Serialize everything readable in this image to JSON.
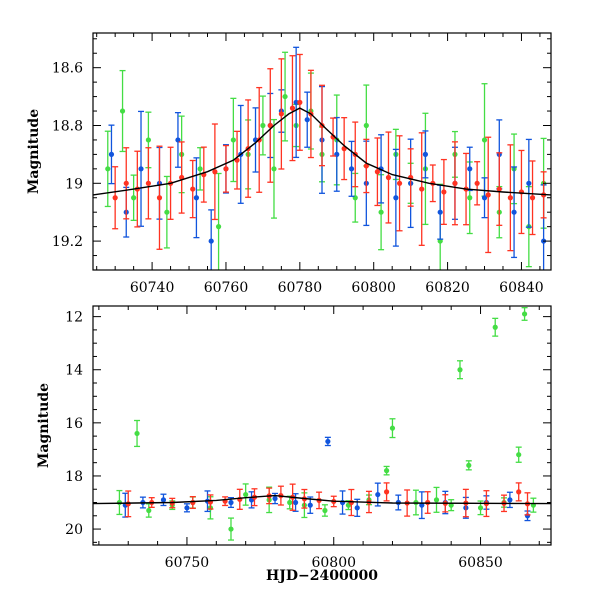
{
  "colors": {
    "green": "#44dd44",
    "blue": "#1155dd",
    "red": "#ff3322",
    "model": "#000000"
  },
  "chart_data": [
    {
      "type": "scatter",
      "xlabel": "",
      "ylabel": "Magnitude",
      "xlim": [
        60724,
        60848
      ],
      "ylim": [
        19.3,
        18.48
      ],
      "inverted_y": true,
      "xticks": [
        "60740",
        "60760",
        "60780",
        "60800",
        "60820",
        "60840"
      ],
      "yticks": [
        "18.6",
        "18.8",
        "19",
        "19.2"
      ],
      "grid": false,
      "model_curve": {
        "x": [
          60724,
          60735,
          60745,
          60755,
          60762,
          60768,
          60773,
          60777,
          60780,
          60783,
          60787,
          60792,
          60798,
          60805,
          60815,
          60825,
          60835,
          60848
        ],
        "y": [
          19.04,
          19.02,
          19.0,
          18.96,
          18.92,
          18.86,
          18.8,
          18.76,
          18.74,
          18.76,
          18.81,
          18.87,
          18.93,
          18.97,
          19.0,
          19.02,
          19.03,
          19.04
        ]
      },
      "series": [
        {
          "name": "",
          "color": "green",
          "points": [
            [
              60728,
              18.95
            ],
            [
              60732,
              18.75
            ],
            [
              60735,
              19.05
            ],
            [
              60739,
              18.85
            ],
            [
              60744,
              19.1
            ],
            [
              60748,
              18.9
            ],
            [
              60753,
              18.95
            ],
            [
              60758,
              19.15
            ],
            [
              60762,
              18.85
            ],
            [
              60766,
              18.9
            ],
            [
              60770,
              18.8
            ],
            [
              60773,
              18.95
            ],
            [
              60776,
              18.7
            ],
            [
              60779,
              18.8
            ],
            [
              60783,
              18.75
            ],
            [
              60786,
              18.9
            ],
            [
              60790,
              18.85
            ],
            [
              60795,
              19.05
            ],
            [
              60798,
              18.8
            ],
            [
              60802,
              19.1
            ],
            [
              60806,
              18.9
            ],
            [
              60810,
              19.0
            ],
            [
              60814,
              18.95
            ],
            [
              60818,
              19.2
            ],
            [
              60822,
              18.9
            ],
            [
              60826,
              19.05
            ],
            [
              60830,
              18.85
            ],
            [
              60834,
              19.1
            ],
            [
              60838,
              18.95
            ],
            [
              60842,
              19.15
            ],
            [
              60846,
              19.0
            ]
          ]
        },
        {
          "name": "",
          "color": "blue",
          "points": [
            [
              60729,
              18.9
            ],
            [
              60733,
              19.1
            ],
            [
              60737,
              18.95
            ],
            [
              60742,
              19.0
            ],
            [
              60747,
              18.85
            ],
            [
              60752,
              19.05
            ],
            [
              60756,
              19.2
            ],
            [
              60760,
              18.95
            ],
            [
              60764,
              18.9
            ],
            [
              60768,
              18.85
            ],
            [
              60772,
              18.8
            ],
            [
              60775,
              18.75
            ],
            [
              60779,
              18.72
            ],
            [
              60782,
              18.78
            ],
            [
              60786,
              18.85
            ],
            [
              60790,
              18.9
            ],
            [
              60794,
              18.95
            ],
            [
              60798,
              19.0
            ],
            [
              60802,
              18.95
            ],
            [
              60806,
              19.05
            ],
            [
              60810,
              19.0
            ],
            [
              60814,
              18.9
            ],
            [
              60818,
              19.1
            ],
            [
              60822,
              19.0
            ],
            [
              60826,
              18.95
            ],
            [
              60830,
              19.05
            ],
            [
              60834,
              18.9
            ],
            [
              60838,
              19.1
            ],
            [
              60842,
              19.0
            ],
            [
              60846,
              19.2
            ]
          ]
        },
        {
          "name": "",
          "color": "red",
          "points": [
            [
              60730,
              19.05
            ],
            [
              60733,
              19.0
            ],
            [
              60736,
              19.02
            ],
            [
              60739,
              19.0
            ],
            [
              60742,
              19.05
            ],
            [
              60745,
              19.0
            ],
            [
              60748,
              18.98
            ],
            [
              60751,
              19.02
            ],
            [
              60754,
              18.97
            ],
            [
              60757,
              18.96
            ],
            [
              60760,
              18.95
            ],
            [
              60763,
              18.92
            ],
            [
              60766,
              18.88
            ],
            [
              60769,
              18.85
            ],
            [
              60772,
              18.8
            ],
            [
              60775,
              18.76
            ],
            [
              60778,
              18.74
            ],
            [
              60780,
              18.72
            ],
            [
              60783,
              18.76
            ],
            [
              60786,
              18.8
            ],
            [
              60789,
              18.84
            ],
            [
              60792,
              18.88
            ],
            [
              60795,
              18.9
            ],
            [
              60798,
              18.94
            ],
            [
              60801,
              18.96
            ],
            [
              60804,
              18.98
            ],
            [
              60807,
              19.0
            ],
            [
              60810,
              18.98
            ],
            [
              60813,
              19.02
            ],
            [
              60816,
              19.0
            ],
            [
              60819,
              19.03
            ],
            [
              60822,
              19.0
            ],
            [
              60825,
              19.02
            ],
            [
              60828,
              19.0
            ],
            [
              60831,
              19.04
            ],
            [
              60834,
              19.02
            ],
            [
              60837,
              19.05
            ],
            [
              60840,
              19.03
            ],
            [
              60843,
              19.05
            ],
            [
              60846,
              19.04
            ]
          ]
        }
      ]
    },
    {
      "type": "scatter",
      "xlabel": "HJD−2400000",
      "ylabel": "Magnitude",
      "xlim": [
        60718,
        60874
      ],
      "ylim": [
        20.6,
        11.6
      ],
      "inverted_y": true,
      "xticks": [
        "60750",
        "60800",
        "60850"
      ],
      "yticks": [
        "12",
        "14",
        "16",
        "18",
        "20"
      ],
      "grid": false,
      "model_curve": {
        "x": [
          60718,
          60745,
          60760,
          60770,
          60780,
          60790,
          60800,
          60820,
          60874
        ],
        "y": [
          19.04,
          19.0,
          18.92,
          18.82,
          18.74,
          18.85,
          18.95,
          19.02,
          19.04
        ]
      },
      "series": [
        {
          "name": "",
          "color": "green",
          "points": [
            [
              60727,
              19.0
            ],
            [
              60733,
              16.4
            ],
            [
              60737,
              19.3
            ],
            [
              60745,
              19.1
            ],
            [
              60752,
              19.0
            ],
            [
              60758,
              19.2
            ],
            [
              60765,
              20.0
            ],
            [
              60770,
              18.7
            ],
            [
              60778,
              18.9
            ],
            [
              60785,
              19.0
            ],
            [
              60790,
              19.1
            ],
            [
              60797,
              19.3
            ],
            [
              60805,
              19.1
            ],
            [
              60812,
              18.9
            ],
            [
              60818,
              17.8
            ],
            [
              60820,
              16.2
            ],
            [
              60828,
              19.0
            ],
            [
              60835,
              18.9
            ],
            [
              60840,
              19.1
            ],
            [
              60843,
              14.0
            ],
            [
              60846,
              17.6
            ],
            [
              60850,
              19.2
            ],
            [
              60855,
              12.4
            ],
            [
              60858,
              19.0
            ],
            [
              60863,
              17.2
            ],
            [
              60865,
              11.9
            ],
            [
              60868,
              19.1
            ]
          ]
        },
        {
          "name": "",
          "color": "blue",
          "points": [
            [
              60729,
              19.1
            ],
            [
              60735,
              19.0
            ],
            [
              60742,
              18.9
            ],
            [
              60750,
              19.2
            ],
            [
              60757,
              18.95
            ],
            [
              60765,
              19.0
            ],
            [
              60772,
              18.9
            ],
            [
              60780,
              18.85
            ],
            [
              60787,
              19.0
            ],
            [
              60792,
              19.1
            ],
            [
              60798,
              16.7
            ],
            [
              60803,
              19.0
            ],
            [
              60808,
              19.2
            ],
            [
              60815,
              18.7
            ],
            [
              60822,
              19.0
            ],
            [
              60830,
              19.1
            ],
            [
              60838,
              19.0
            ],
            [
              60845,
              19.2
            ],
            [
              60852,
              19.0
            ],
            [
              60860,
              18.9
            ],
            [
              60866,
              19.5
            ]
          ]
        },
        {
          "name": "",
          "color": "red",
          "points": [
            [
              60730,
              19.05
            ],
            [
              60738,
              19.0
            ],
            [
              60745,
              19.02
            ],
            [
              60752,
              19.0
            ],
            [
              60758,
              18.98
            ],
            [
              60763,
              18.95
            ],
            [
              60768,
              18.88
            ],
            [
              60773,
              18.8
            ],
            [
              60778,
              18.75
            ],
            [
              60782,
              18.74
            ],
            [
              60786,
              18.8
            ],
            [
              60790,
              18.86
            ],
            [
              60795,
              18.92
            ],
            [
              60800,
              18.96
            ],
            [
              60806,
              19.0
            ],
            [
              60812,
              18.98
            ],
            [
              60818,
              18.6
            ],
            [
              60825,
              19.02
            ],
            [
              60832,
              19.0
            ],
            [
              60838,
              19.03
            ],
            [
              60845,
              19.02
            ],
            [
              60852,
              19.04
            ],
            [
              60858,
              19.03
            ],
            [
              60863,
              18.6
            ],
            [
              60866,
              19.05
            ]
          ]
        }
      ]
    }
  ]
}
